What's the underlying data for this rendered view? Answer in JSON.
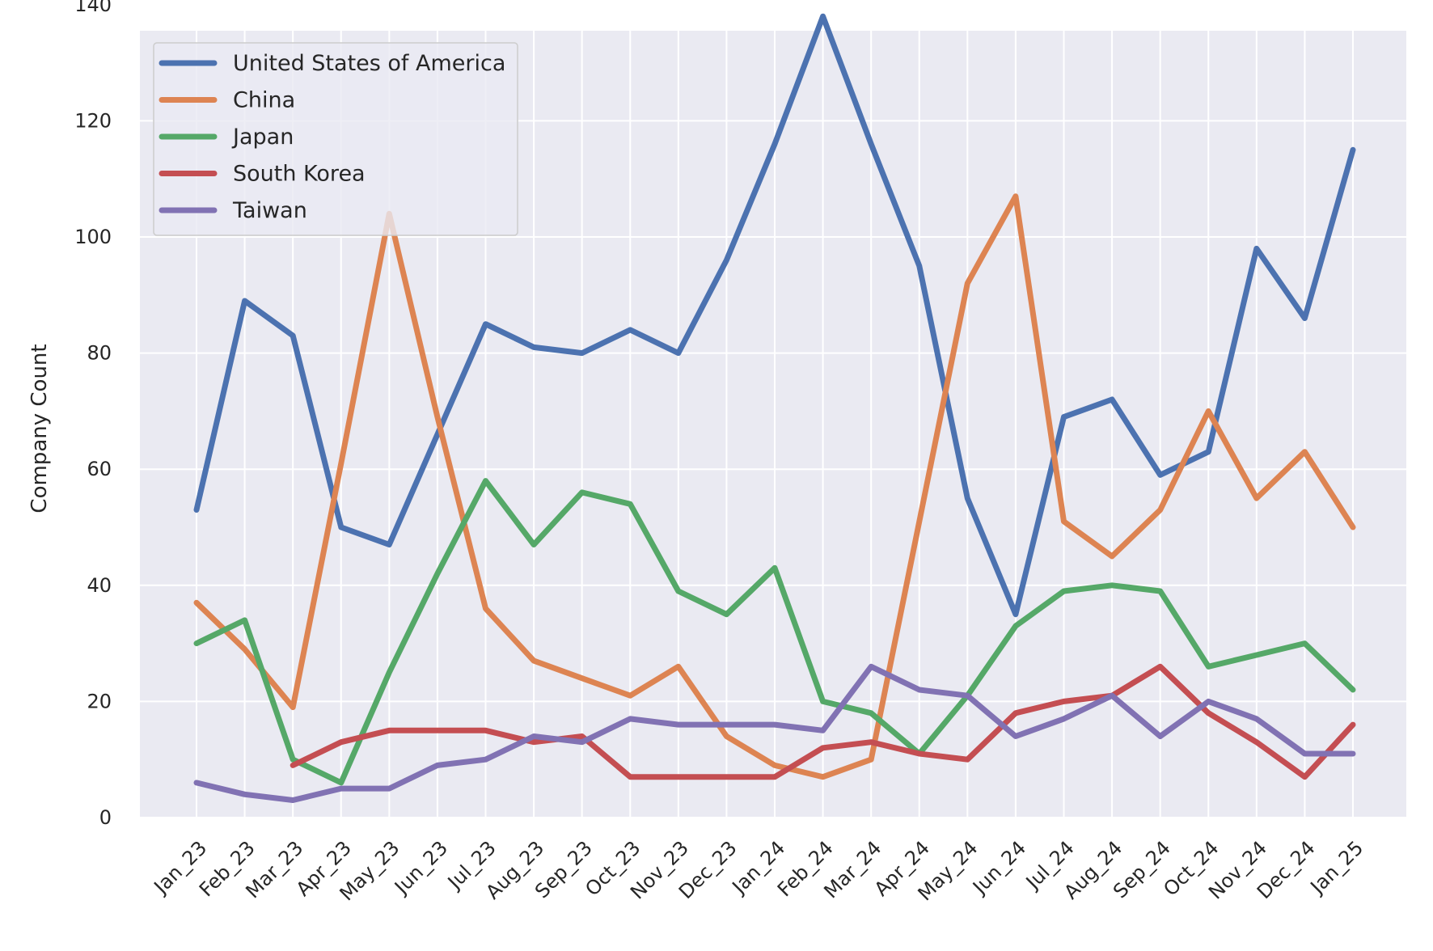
{
  "chart_data": {
    "type": "line",
    "title": "",
    "xlabel": "",
    "ylabel": "Company Count",
    "ylim": [
      0,
      150
    ],
    "yticks": [
      0,
      20,
      40,
      60,
      80,
      100,
      120,
      140
    ],
    "grid": true,
    "legend_position": "top-left",
    "categories": [
      "Jan_23",
      "Feb_23",
      "Mar_23",
      "Apr_23",
      "May_23",
      "Jun_23",
      "Jul_23",
      "Aug_23",
      "Sep_23",
      "Oct_23",
      "Nov_23",
      "Dec_23",
      "Jan_24",
      "Feb_24",
      "Mar_24",
      "Apr_24",
      "May_24",
      "Jun_24",
      "Jul_24",
      "Aug_24",
      "Sep_24",
      "Oct_24",
      "Nov_24",
      "Dec_24",
      "Jan_25"
    ],
    "series": [
      {
        "name": "United States of America",
        "color": "#4c72b0",
        "values": [
          53,
          89,
          83,
          50,
          47,
          66,
          85,
          81,
          80,
          84,
          80,
          96,
          116,
          138,
          116,
          95,
          55,
          35,
          69,
          72,
          59,
          63,
          98,
          86,
          115
        ]
      },
      {
        "name": "China",
        "color": "#dd8452",
        "values": [
          37,
          29,
          19,
          61,
          104,
          69,
          36,
          27,
          24,
          21,
          26,
          14,
          9,
          7,
          10,
          51,
          92,
          107,
          51,
          45,
          53,
          70,
          55,
          63,
          50
        ]
      },
      {
        "name": "Japan",
        "color": "#55a868",
        "values": [
          30,
          34,
          10,
          6,
          25,
          42,
          58,
          47,
          56,
          54,
          39,
          35,
          43,
          20,
          18,
          11,
          21,
          33,
          39,
          40,
          39,
          26,
          28,
          30,
          22
        ]
      },
      {
        "name": "South Korea",
        "color": "#c44e52",
        "values": [
          null,
          null,
          9,
          13,
          15,
          15,
          15,
          13,
          14,
          7,
          7,
          7,
          7,
          12,
          13,
          11,
          10,
          18,
          20,
          21,
          26,
          18,
          13,
          7,
          16
        ]
      },
      {
        "name": "Taiwan",
        "color": "#8172b3",
        "values": [
          6,
          4,
          3,
          5,
          5,
          9,
          10,
          14,
          13,
          17,
          16,
          16,
          16,
          15,
          26,
          22,
          21,
          14,
          17,
          21,
          14,
          20,
          17,
          11,
          11
        ]
      }
    ]
  }
}
